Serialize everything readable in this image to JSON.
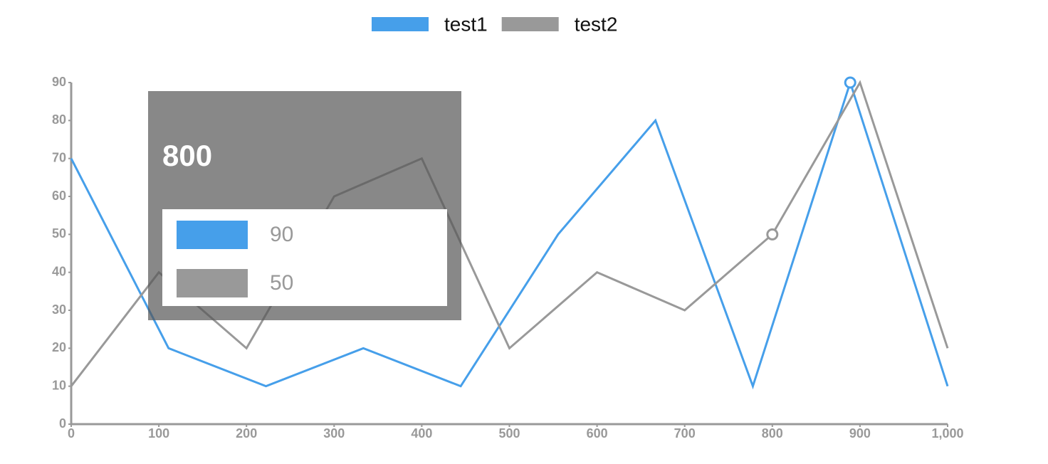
{
  "chart_data": {
    "type": "line",
    "series": [
      {
        "name": "test1",
        "color": "#469fea",
        "x": [
          0,
          111.11,
          222.22,
          333.33,
          444.44,
          555.56,
          666.67,
          777.78,
          888.89,
          1000
        ],
        "values": [
          70,
          20,
          10,
          20,
          10,
          50,
          80,
          10,
          90,
          10
        ]
      },
      {
        "name": "test2",
        "color": "#999999",
        "x": [
          0,
          100,
          200,
          300,
          400,
          500,
          600,
          700,
          800,
          900,
          1000
        ],
        "values": [
          10,
          40,
          20,
          60,
          70,
          20,
          40,
          30,
          50,
          90,
          20
        ]
      }
    ],
    "xlim": [
      0,
      1000
    ],
    "xticks": [
      0,
      100,
      200,
      300,
      400,
      500,
      600,
      700,
      800,
      900,
      {
        "value": 1000,
        "label": "1,000"
      }
    ],
    "ylim": [
      0,
      90
    ],
    "yticks": [
      0,
      10,
      20,
      30,
      40,
      50,
      60,
      70,
      80,
      90
    ],
    "legend": "top",
    "tooltip": {
      "x": 800,
      "values": [
        90,
        50
      ]
    }
  }
}
